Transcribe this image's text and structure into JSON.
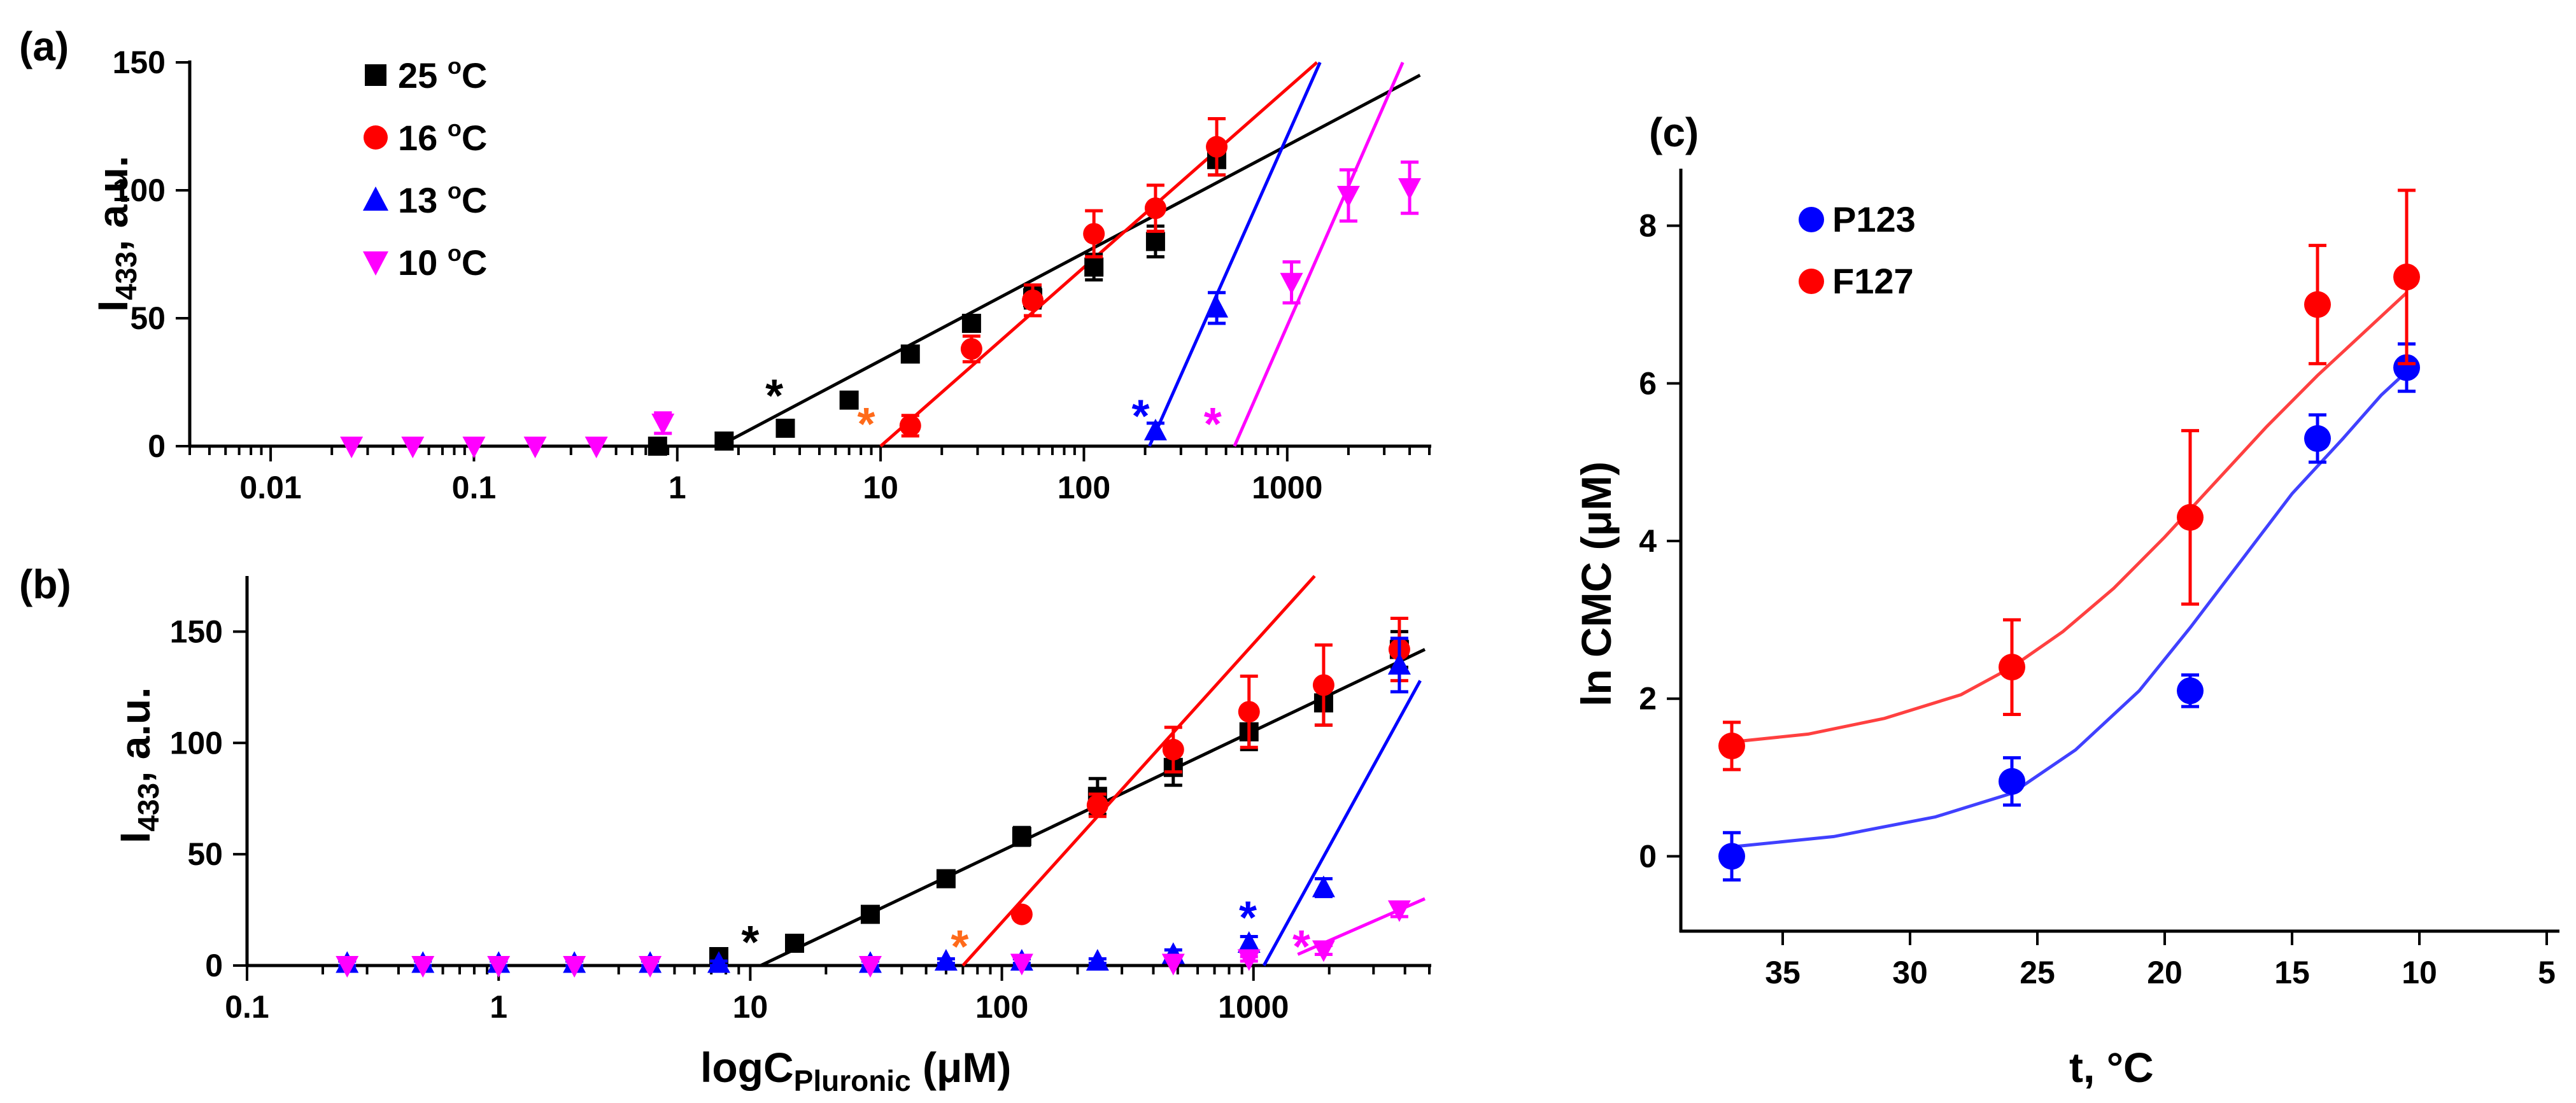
{
  "chart_data": [
    {
      "panel": "(a)",
      "type": "scatter",
      "xscale": "log",
      "xlim": [
        0.004,
        5000
      ],
      "ylim": [
        0,
        150
      ],
      "xticks": [
        0.01,
        0.1,
        1,
        10,
        100,
        1000
      ],
      "xtick_labels": [
        "0.01",
        "0.1",
        "1",
        "10",
        "100",
        "1000"
      ],
      "yticks": [
        0,
        50,
        100,
        150
      ],
      "ytick_labels": [
        "0",
        "50",
        "100",
        "150"
      ],
      "ylabel_main": "I",
      "ylabel_sub": "433",
      "ylabel_rest": ", a.u.",
      "legend_position": "top-left",
      "series": [
        {
          "name": "25 °C",
          "label": "25",
          "unit": "oC",
          "color": "#000000",
          "marker": "square",
          "x": [
            0.8,
            1.7,
            3.4,
            7,
            14,
            28,
            56,
            112,
            225,
            450
          ],
          "y": [
            0,
            2,
            7,
            18,
            36,
            48,
            58,
            70,
            80,
            112
          ],
          "err": [
            1,
            1,
            2,
            2,
            3,
            3,
            4,
            5,
            6,
            6
          ],
          "fit": [
            [
              1.6,
              0
            ],
            [
              4500,
              145
            ]
          ],
          "cmc_x": 3.0,
          "cmc_y": 21,
          "cmc_color": "#000000"
        },
        {
          "name": "16 °C",
          "label": "16",
          "unit": "oC",
          "color": "#ff0000",
          "marker": "circle",
          "x": [
            14,
            28,
            56,
            112,
            225,
            450
          ],
          "y": [
            8,
            38,
            57,
            83,
            93,
            117
          ],
          "err": [
            4,
            5,
            6,
            9,
            9,
            11
          ],
          "fit": [
            [
              10,
              0
            ],
            [
              1400,
              150
            ]
          ],
          "cmc_x": 8.5,
          "cmc_y": 10,
          "cmc_color": "#ff6a1a"
        },
        {
          "name": "13 °C",
          "label": "13",
          "unit": "oC",
          "color": "#0000ff",
          "marker": "triangle-up",
          "x": [
            225,
            450
          ],
          "y": [
            6,
            54
          ],
          "err": [
            3,
            6
          ],
          "fit": [
            [
              210,
              0
            ],
            [
              1450,
              150
            ]
          ],
          "cmc_x": 190,
          "cmc_y": 13,
          "cmc_color": "#0000ff"
        },
        {
          "name": "10 °C",
          "label": "10",
          "unit": "oC",
          "color": "#ff00ff",
          "marker": "triangle-down",
          "x": [
            0.025,
            0.05,
            0.1,
            0.2,
            0.4,
            0.85,
            1050,
            2000,
            4000
          ],
          "y": [
            0,
            0,
            0,
            0,
            0,
            9,
            64,
            98,
            101
          ],
          "err": [
            0,
            0,
            0,
            0,
            0,
            4,
            8,
            10,
            10
          ],
          "fit": [
            [
              550,
              0
            ],
            [
              3700,
              150
            ]
          ],
          "cmc_x": 430,
          "cmc_y": 10,
          "cmc_color": "#ff00ff"
        }
      ],
      "annotations": [
        "*",
        "*",
        "*",
        "*"
      ]
    },
    {
      "panel": "(b)",
      "type": "scatter",
      "xscale": "log",
      "xlim": [
        0.1,
        5000
      ],
      "ylim": [
        0,
        175
      ],
      "xticks": [
        0.1,
        1,
        10,
        100,
        1000
      ],
      "xtick_labels": [
        "0.1",
        "1",
        "10",
        "100",
        "1000"
      ],
      "yticks": [
        0,
        50,
        100,
        150
      ],
      "ytick_labels": [
        "0",
        "50",
        "100",
        "150"
      ],
      "ylabel_main": "I",
      "ylabel_sub": "433",
      "ylabel_rest": ", a.u.",
      "xlabel_main": "logC",
      "xlabel_sub": "Pluronic",
      "xlabel_rest": " (μM)",
      "series": [
        {
          "name": "25 °C",
          "color": "#000000",
          "marker": "square",
          "x": [
            7.5,
            15,
            30,
            60,
            120,
            240,
            480,
            960,
            1900,
            3800
          ],
          "y": [
            4,
            10,
            23,
            39,
            58,
            76,
            89,
            105,
            118,
            142
          ],
          "err": [
            1,
            1,
            2,
            3,
            4,
            8,
            8,
            8,
            10,
            8
          ],
          "fit": [
            [
              11,
              0
            ],
            [
              4800,
              142
            ]
          ],
          "cmc_x": 10,
          "cmc_y": 12,
          "cmc_color": "#000000"
        },
        {
          "name": "16 °C",
          "color": "#ff0000",
          "marker": "circle",
          "x": [
            120,
            240,
            480,
            960,
            1900,
            3800
          ],
          "y": [
            23,
            72,
            97,
            114,
            126,
            142
          ],
          "err": [
            2,
            5,
            10,
            16,
            18,
            14
          ],
          "fit": [
            [
              70,
              0
            ],
            [
              1750,
              175
            ]
          ],
          "cmc_x": 68,
          "cmc_y": 10,
          "cmc_color": "#ff6a1a"
        },
        {
          "name": "13 °C",
          "color": "#0000ff",
          "marker": "triangle-up",
          "x": [
            0.25,
            0.5,
            1,
            2,
            4,
            7.5,
            30,
            60,
            120,
            240,
            480,
            960,
            1900,
            3800
          ],
          "y": [
            1,
            1,
            1,
            1,
            1,
            1,
            1,
            2,
            2,
            2,
            5,
            10,
            35,
            135
          ],
          "err": [
            1,
            1,
            1,
            1,
            1,
            1,
            1,
            1,
            1,
            1,
            2,
            3,
            4,
            12
          ],
          "fit": [
            [
              1100,
              0
            ],
            [
              4600,
              128
            ]
          ],
          "cmc_x": 950,
          "cmc_y": 23,
          "cmc_color": "#0000ff"
        },
        {
          "name": "10 °C",
          "color": "#ff00ff",
          "marker": "triangle-down",
          "x": [
            0.25,
            0.5,
            1,
            2,
            4,
            30,
            120,
            480,
            960,
            1900,
            3800
          ],
          "y": [
            0,
            0,
            0,
            0,
            0,
            0,
            1,
            1,
            3,
            7,
            25
          ],
          "err": [
            0,
            0,
            0,
            0,
            0,
            0,
            0,
            0,
            1,
            2,
            3
          ],
          "fit": [
            [
              1500,
              5
            ],
            [
              4800,
              30
            ]
          ],
          "cmc_x": 1550,
          "cmc_y": 10,
          "cmc_color": "#ff00ff"
        }
      ],
      "annotations": [
        "*",
        "*",
        "*",
        "*"
      ]
    },
    {
      "panel": "(c)",
      "type": "scatter",
      "xlim": [
        39,
        4.5
      ],
      "ylim": [
        -0.95,
        8.7
      ],
      "xticks": [
        35,
        30,
        25,
        20,
        15,
        10,
        5
      ],
      "xtick_labels": [
        "35",
        "30",
        "25",
        "20",
        "15",
        "10",
        "5"
      ],
      "yticks": [
        0,
        2,
        4,
        6,
        8
      ],
      "ytick_labels": [
        "0",
        "2",
        "4",
        "6",
        "8"
      ],
      "xlabel": "t, °C",
      "ylabel": "ln CMC (μM)",
      "legend_position": "top-left",
      "series": [
        {
          "name": "P123",
          "color": "#0000ff",
          "marker": "circle",
          "x": [
            37,
            26,
            19,
            14,
            10.5
          ],
          "y": [
            0,
            0.95,
            2.1,
            5.3,
            6.2
          ],
          "err": [
            0.3,
            0.3,
            0.2,
            0.3,
            0.3
          ],
          "fit_x": [
            37,
            33,
            29,
            26,
            23.5,
            21,
            19,
            17,
            15,
            13,
            11.5,
            10.5
          ],
          "fit_y": [
            0.12,
            0.25,
            0.5,
            0.8,
            1.35,
            2.1,
            2.9,
            3.75,
            4.6,
            5.3,
            5.85,
            6.15
          ]
        },
        {
          "name": "F127",
          "color": "#ff0000",
          "marker": "circle",
          "x": [
            37,
            26,
            19,
            14,
            10.5
          ],
          "y": [
            1.4,
            2.4,
            4.3,
            7.0,
            7.35
          ],
          "err": [
            0.3,
            0.6,
            1.1,
            0.75,
            1.1
          ],
          "fit_x": [
            37,
            34,
            31,
            28,
            26,
            24,
            22,
            20,
            18,
            16,
            14,
            12,
            10.5
          ],
          "fit_y": [
            1.45,
            1.55,
            1.75,
            2.05,
            2.4,
            2.85,
            3.4,
            4.05,
            4.75,
            5.45,
            6.1,
            6.7,
            7.15
          ]
        }
      ]
    }
  ]
}
